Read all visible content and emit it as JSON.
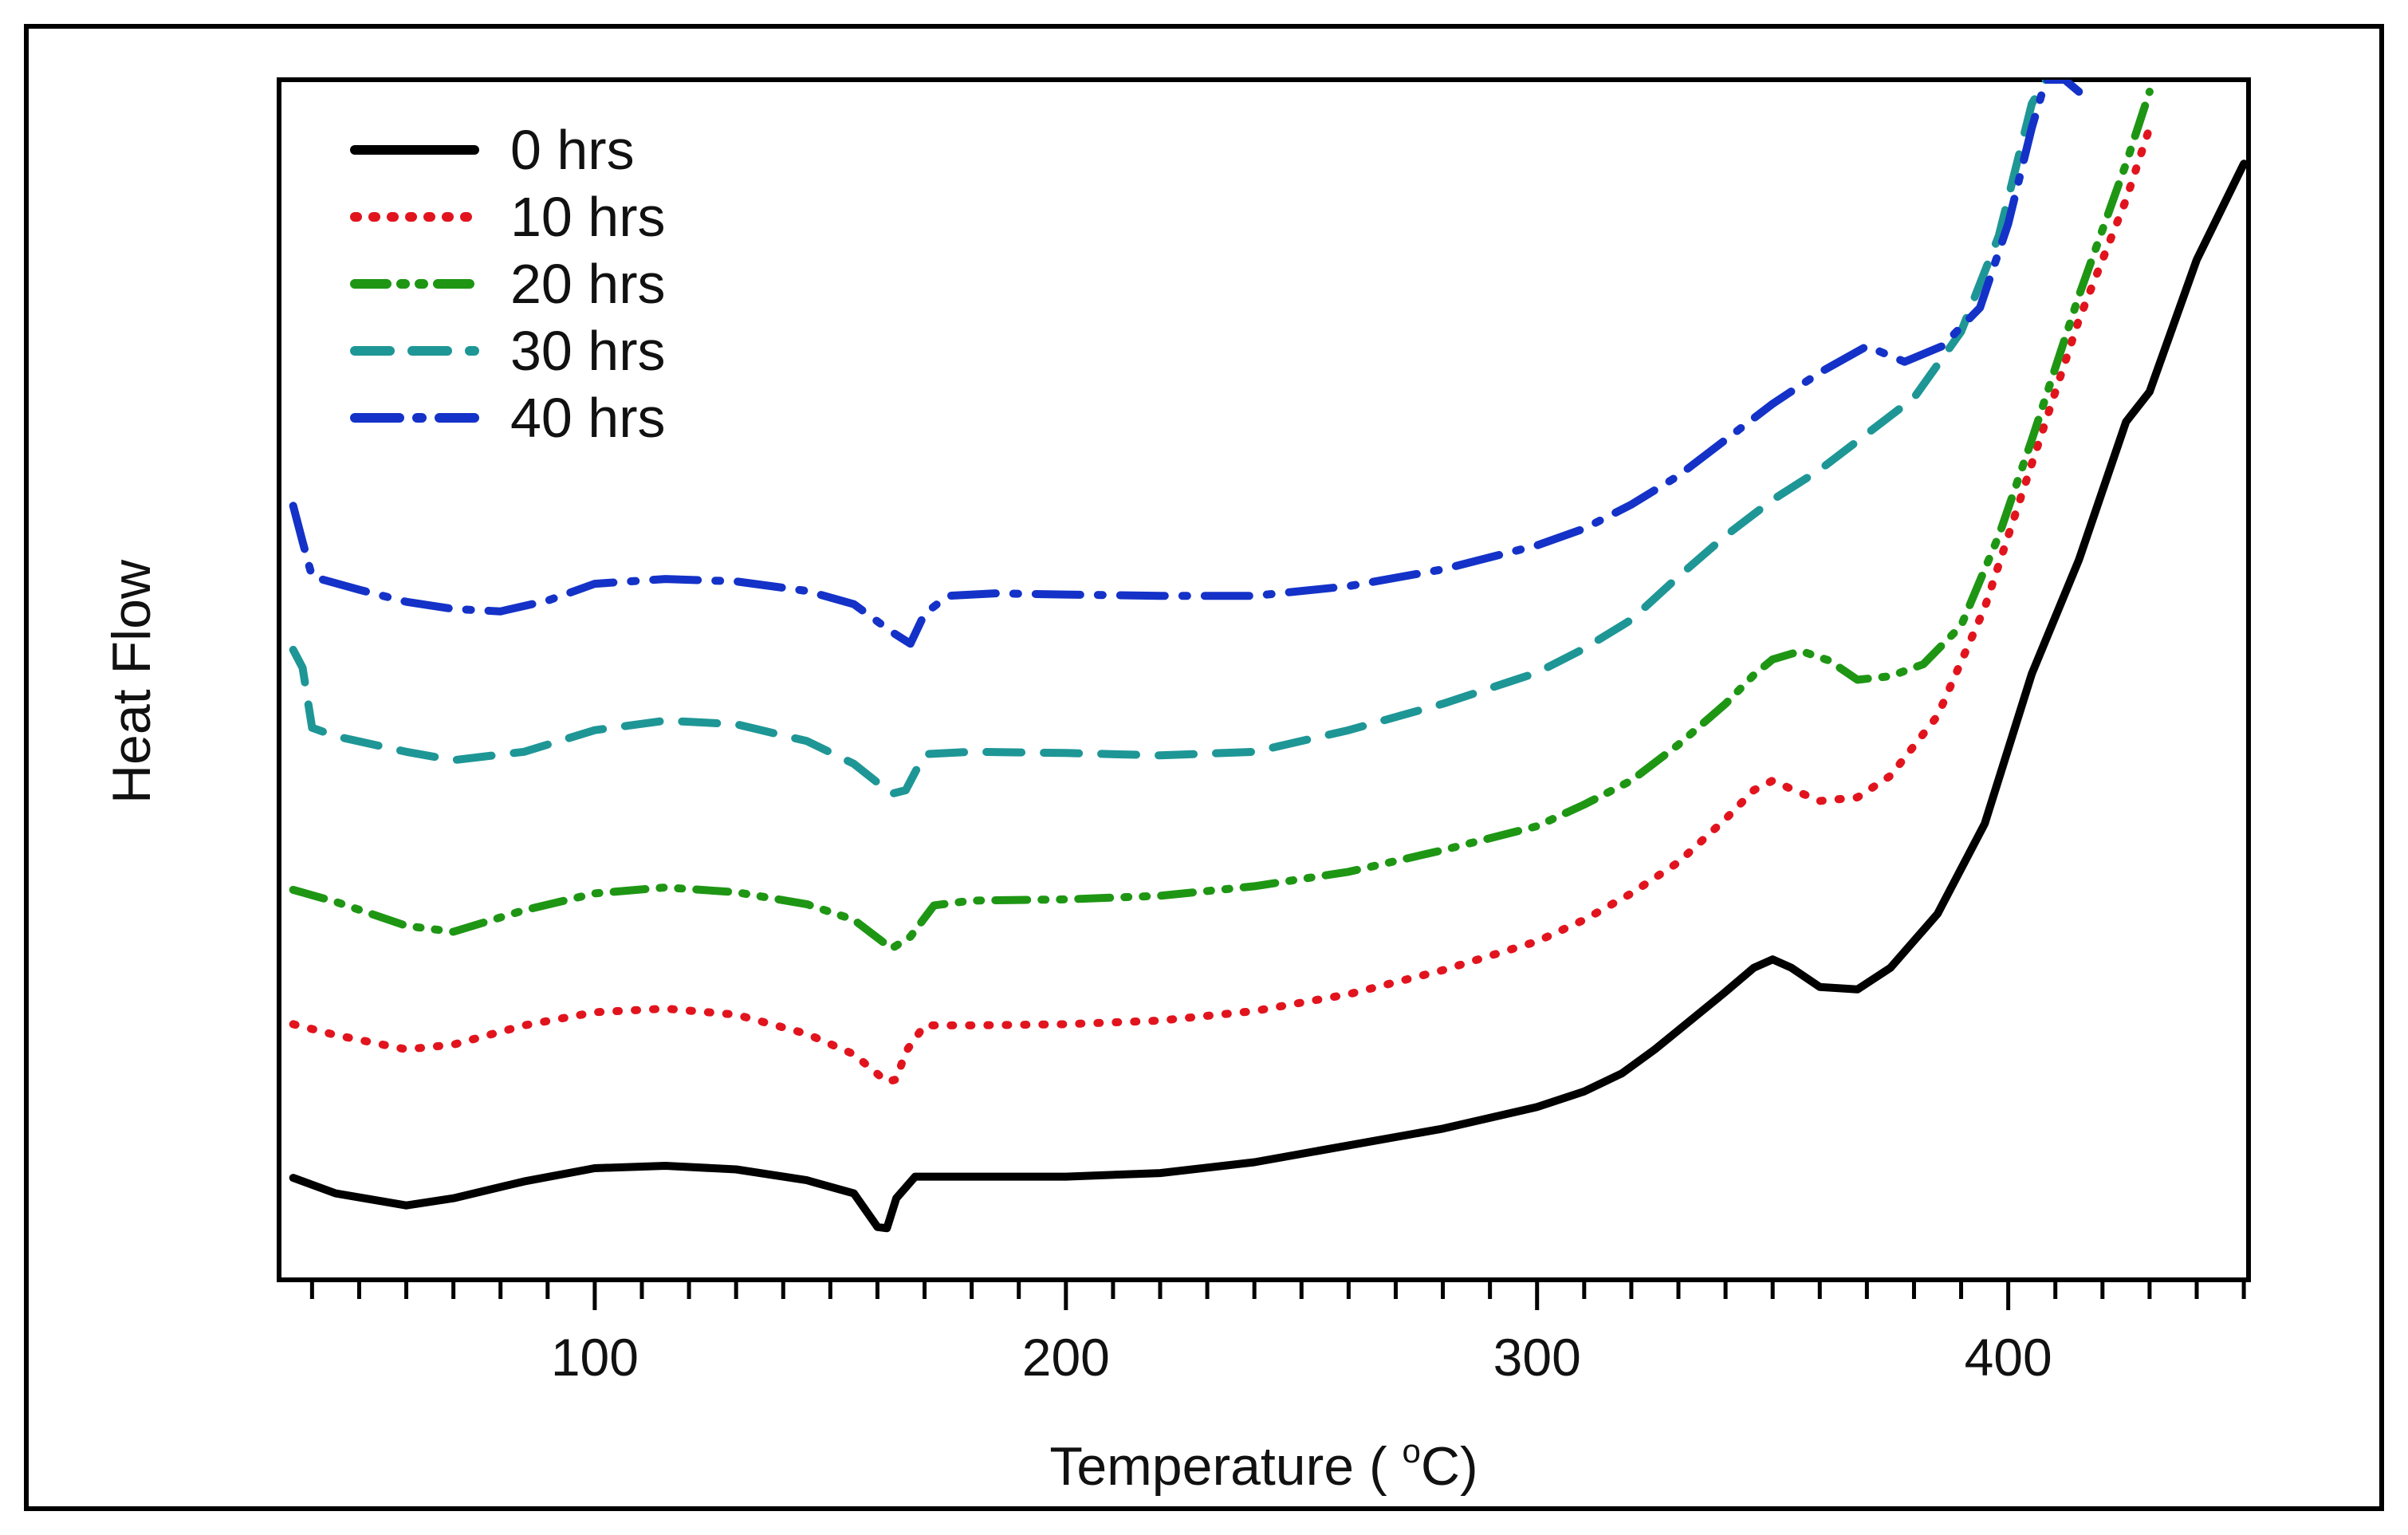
{
  "chart_data": {
    "type": "line",
    "title": "",
    "xlabel": "Temperature ( °C)",
    "xlabel_main": "Temperature ( ",
    "xlabel_degree": "o",
    "xlabel_unit": "C)",
    "ylabel": "Heat Flow",
    "xlim": [
      33,
      451
    ],
    "ylim": [
      0,
      100
    ],
    "y_ticks_shown": false,
    "grid": false,
    "legend_position": "top-left",
    "x_major_ticks": [
      100,
      200,
      300,
      400
    ],
    "x_tick_labels": [
      "100",
      "200",
      "300",
      "400"
    ],
    "x_minor_step": 10,
    "series": [
      {
        "name": "0 hrs",
        "color": "#000000",
        "style": "solid",
        "points": [
          [
            36,
            8.5
          ],
          [
            45,
            7.2
          ],
          [
            60,
            6.2
          ],
          [
            70,
            6.8
          ],
          [
            85,
            8.2
          ],
          [
            100,
            9.3
          ],
          [
            115,
            9.5
          ],
          [
            130,
            9.2
          ],
          [
            145,
            8.3
          ],
          [
            155,
            7.2
          ],
          [
            160,
            4.4
          ],
          [
            162,
            4.3
          ],
          [
            164,
            6.8
          ],
          [
            168,
            8.6
          ],
          [
            180,
            8.6
          ],
          [
            200,
            8.6
          ],
          [
            220,
            8.9
          ],
          [
            240,
            9.8
          ],
          [
            260,
            11.2
          ],
          [
            280,
            12.6
          ],
          [
            300,
            14.4
          ],
          [
            310,
            15.7
          ],
          [
            318,
            17.2
          ],
          [
            325,
            19.2
          ],
          [
            330,
            20.8
          ],
          [
            340,
            24.0
          ],
          [
            346,
            26.0
          ],
          [
            350,
            26.7
          ],
          [
            354,
            26.0
          ],
          [
            360,
            24.4
          ],
          [
            368,
            24.2
          ],
          [
            375,
            26.0
          ],
          [
            385,
            30.5
          ],
          [
            395,
            38.0
          ],
          [
            405,
            50.5
          ],
          [
            415,
            60.0
          ],
          [
            425,
            71.5
          ],
          [
            430,
            74.0
          ],
          [
            440,
            85.0
          ],
          [
            450,
            93.0
          ]
        ]
      },
      {
        "name": "10 hrs",
        "color": "#e1141e",
        "style": "dotted",
        "points": [
          [
            36,
            21.3
          ],
          [
            45,
            20.4
          ],
          [
            60,
            19.2
          ],
          [
            70,
            19.6
          ],
          [
            85,
            21.2
          ],
          [
            100,
            22.3
          ],
          [
            115,
            22.6
          ],
          [
            130,
            22.1
          ],
          [
            145,
            20.5
          ],
          [
            155,
            18.8
          ],
          [
            162,
            16.5
          ],
          [
            164,
            16.7
          ],
          [
            166,
            19.0
          ],
          [
            170,
            21.2
          ],
          [
            180,
            21.2
          ],
          [
            200,
            21.3
          ],
          [
            220,
            21.6
          ],
          [
            240,
            22.4
          ],
          [
            260,
            23.8
          ],
          [
            280,
            25.8
          ],
          [
            300,
            28.2
          ],
          [
            310,
            30.0
          ],
          [
            320,
            32.2
          ],
          [
            330,
            34.8
          ],
          [
            340,
            38.4
          ],
          [
            346,
            40.8
          ],
          [
            350,
            41.6
          ],
          [
            354,
            40.9
          ],
          [
            360,
            39.9
          ],
          [
            368,
            40.2
          ],
          [
            375,
            42.0
          ],
          [
            385,
            47.0
          ],
          [
            395,
            56.0
          ],
          [
            405,
            68.0
          ],
          [
            415,
            80.0
          ],
          [
            425,
            90.0
          ],
          [
            430,
            96.0
          ]
        ]
      },
      {
        "name": "20 hrs",
        "color": "#1e9614",
        "style": "dashdotdot",
        "points": [
          [
            36,
            32.5
          ],
          [
            45,
            31.5
          ],
          [
            60,
            29.5
          ],
          [
            70,
            29.0
          ],
          [
            85,
            30.8
          ],
          [
            100,
            32.2
          ],
          [
            115,
            32.7
          ],
          [
            130,
            32.3
          ],
          [
            145,
            31.3
          ],
          [
            155,
            30.0
          ],
          [
            163,
            27.6
          ],
          [
            167,
            28.6
          ],
          [
            172,
            31.2
          ],
          [
            180,
            31.6
          ],
          [
            200,
            31.7
          ],
          [
            220,
            32.0
          ],
          [
            240,
            32.8
          ],
          [
            260,
            34.0
          ],
          [
            280,
            35.8
          ],
          [
            300,
            37.8
          ],
          [
            310,
            39.6
          ],
          [
            320,
            41.6
          ],
          [
            330,
            44.6
          ],
          [
            340,
            48.0
          ],
          [
            346,
            50.4
          ],
          [
            350,
            51.7
          ],
          [
            356,
            52.4
          ],
          [
            362,
            51.6
          ],
          [
            368,
            50.0
          ],
          [
            375,
            50.3
          ],
          [
            382,
            51.3
          ],
          [
            390,
            54.5
          ],
          [
            398,
            62.0
          ],
          [
            405,
            70.0
          ],
          [
            415,
            82.0
          ],
          [
            425,
            93.0
          ],
          [
            430,
            99.0
          ]
        ]
      },
      {
        "name": "30 hrs",
        "color": "#1e9696",
        "style": "dashed",
        "points": [
          [
            36,
            52.5
          ],
          [
            38,
            51.0
          ],
          [
            40,
            46.0
          ],
          [
            45,
            45.3
          ],
          [
            60,
            44.0
          ],
          [
            70,
            43.3
          ],
          [
            85,
            44.0
          ],
          [
            100,
            45.8
          ],
          [
            115,
            46.6
          ],
          [
            130,
            46.3
          ],
          [
            145,
            44.9
          ],
          [
            155,
            43.0
          ],
          [
            163,
            40.5
          ],
          [
            166,
            40.8
          ],
          [
            170,
            43.8
          ],
          [
            180,
            44.0
          ],
          [
            200,
            43.9
          ],
          [
            220,
            43.7
          ],
          [
            240,
            44.0
          ],
          [
            260,
            45.8
          ],
          [
            280,
            48.0
          ],
          [
            300,
            50.6
          ],
          [
            310,
            52.6
          ],
          [
            320,
            55.0
          ],
          [
            330,
            58.6
          ],
          [
            340,
            62.0
          ],
          [
            350,
            65.0
          ],
          [
            360,
            67.5
          ],
          [
            370,
            70.5
          ],
          [
            380,
            73.5
          ],
          [
            390,
            79.0
          ],
          [
            398,
            87.0
          ],
          [
            405,
            98.0
          ],
          [
            408,
            100.0
          ]
        ]
      },
      {
        "name": "40 hrs",
        "color": "#1432c8",
        "style": "dashdot",
        "points": [
          [
            36,
            64.5
          ],
          [
            38,
            61.5
          ],
          [
            40,
            58.6
          ],
          [
            50,
            57.5
          ],
          [
            60,
            56.5
          ],
          [
            70,
            55.9
          ],
          [
            80,
            55.7
          ],
          [
            90,
            56.6
          ],
          [
            100,
            58.0
          ],
          [
            115,
            58.4
          ],
          [
            130,
            58.2
          ],
          [
            145,
            57.4
          ],
          [
            155,
            56.3
          ],
          [
            163,
            54.0
          ],
          [
            167,
            53.0
          ],
          [
            170,
            55.5
          ],
          [
            175,
            57.0
          ],
          [
            185,
            57.2
          ],
          [
            200,
            57.1
          ],
          [
            220,
            57.0
          ],
          [
            240,
            57.0
          ],
          [
            260,
            57.8
          ],
          [
            280,
            59.2
          ],
          [
            300,
            61.2
          ],
          [
            310,
            62.6
          ],
          [
            320,
            64.6
          ],
          [
            330,
            67.0
          ],
          [
            340,
            70.0
          ],
          [
            350,
            73.0
          ],
          [
            360,
            75.6
          ],
          [
            370,
            77.8
          ],
          [
            378,
            76.5
          ],
          [
            386,
            77.8
          ],
          [
            394,
            81.0
          ],
          [
            400,
            88.0
          ],
          [
            405,
            96.0
          ],
          [
            408,
            100.0
          ],
          [
            412,
            100.0
          ],
          [
            415,
            99.0
          ]
        ]
      }
    ]
  }
}
